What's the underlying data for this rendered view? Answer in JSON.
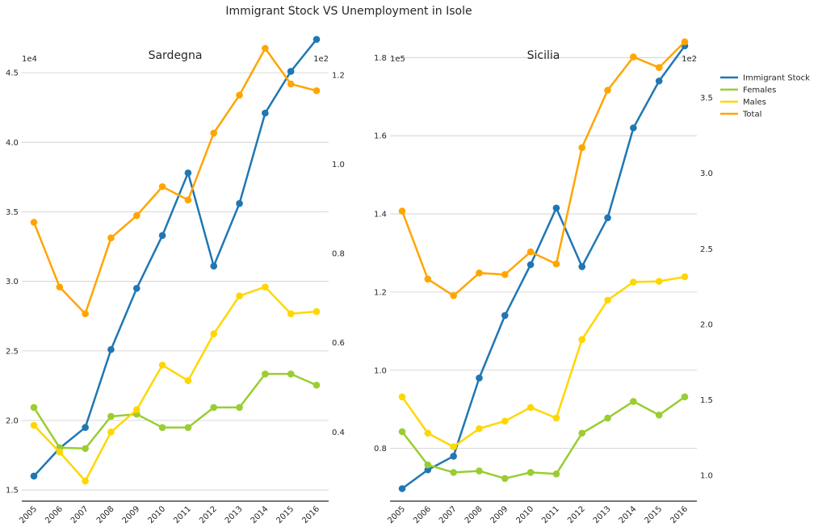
{
  "suptitle": "Immigrant Stock VS Unemployment in Isole",
  "legend": {
    "placement": "right-top",
    "entries": [
      "Immigrant Stock",
      "Females",
      "Males",
      "Total"
    ]
  },
  "colors": {
    "Immigrant Stock": "#1f77b4",
    "Females": "#9acd32",
    "Males": "#ffd700",
    "Total": "#ffa500",
    "grid": "#cccccc",
    "axis": "#262626"
  },
  "chart_data": [
    {
      "type": "line",
      "title": "Sardegna",
      "grid": true,
      "x": [
        "2005",
        "2006",
        "2007",
        "2008",
        "2009",
        "2010",
        "2011",
        "2012",
        "2013",
        "2014",
        "2015",
        "2016"
      ],
      "left_axis": {
        "offset_label": "1e4",
        "ylim": [
          1.42,
          4.82
        ],
        "ticks": [
          1.5,
          2.0,
          2.5,
          3.0,
          3.5,
          4.0,
          4.5
        ],
        "tick_labels": [
          "1.5",
          "2.0",
          "2.5",
          "3.0",
          "3.5",
          "4.0",
          "4.5"
        ]
      },
      "right_axis": {
        "offset_label": "1e2",
        "ylim": [
          0.245,
          1.305
        ],
        "ticks": [
          0.4,
          0.6,
          0.8,
          1.0,
          1.2
        ],
        "tick_labels": [
          "0.4",
          "0.6",
          "0.8",
          "1.0",
          "1.2"
        ]
      },
      "series": [
        {
          "name": "Immigrant Stock",
          "axis": "left",
          "values": [
            1.6,
            1.8,
            1.95,
            2.51,
            2.95,
            3.33,
            3.78,
            3.11,
            3.56,
            4.21,
            4.51,
            4.74
          ]
        },
        {
          "name": "Females",
          "axis": "right",
          "values": [
            0.455,
            0.365,
            0.363,
            0.435,
            0.44,
            0.41,
            0.41,
            0.455,
            0.455,
            0.53,
            0.53,
            0.505
          ]
        },
        {
          "name": "Males",
          "axis": "right",
          "values": [
            0.415,
            0.355,
            0.29,
            0.4,
            0.45,
            0.55,
            0.515,
            0.62,
            0.705,
            0.725,
            0.665,
            0.67
          ]
        },
        {
          "name": "Total",
          "axis": "right",
          "values": [
            0.87,
            0.725,
            0.665,
            0.835,
            0.885,
            0.95,
            0.92,
            1.07,
            1.155,
            1.26,
            1.18,
            1.165
          ]
        }
      ]
    },
    {
      "type": "line",
      "title": "Sicilia",
      "grid": true,
      "x": [
        "2005",
        "2006",
        "2007",
        "2008",
        "2009",
        "2010",
        "2011",
        "2012",
        "2013",
        "2014",
        "2015",
        "2016"
      ],
      "left_axis": {
        "offset_label": "1e5",
        "ylim": [
          0.665,
          1.875
        ],
        "ticks": [
          0.8,
          1.0,
          1.2,
          1.4,
          1.6,
          1.8
        ],
        "tick_labels": [
          "0.8",
          "1.0",
          "1.2",
          "1.4",
          "1.6",
          "1.8"
        ]
      },
      "right_axis": {
        "offset_label": "1e2",
        "ylim": [
          0.83,
          3.96
        ],
        "ticks": [
          1.0,
          1.5,
          2.0,
          2.5,
          3.0,
          3.5
        ],
        "tick_labels": [
          "1.0",
          "1.5",
          "2.0",
          "2.5",
          "3.0",
          "3.5"
        ]
      },
      "series": [
        {
          "name": "Immigrant Stock",
          "axis": "left",
          "values": [
            0.697,
            0.745,
            0.78,
            0.98,
            1.14,
            1.27,
            1.415,
            1.265,
            1.39,
            1.62,
            1.74,
            1.83
          ]
        },
        {
          "name": "Females",
          "axis": "right",
          "values": [
            1.29,
            1.07,
            1.02,
            1.03,
            0.98,
            1.02,
            1.01,
            1.28,
            1.38,
            1.49,
            1.4,
            1.52
          ]
        },
        {
          "name": "Males",
          "axis": "right",
          "values": [
            1.52,
            1.28,
            1.19,
            1.31,
            1.36,
            1.45,
            1.38,
            1.9,
            2.16,
            2.28,
            2.285,
            2.315
          ]
        },
        {
          "name": "Total",
          "axis": "right",
          "values": [
            2.75,
            2.3,
            2.19,
            2.34,
            2.33,
            2.48,
            2.4,
            3.17,
            3.55,
            3.77,
            3.7,
            3.87
          ]
        }
      ]
    }
  ]
}
